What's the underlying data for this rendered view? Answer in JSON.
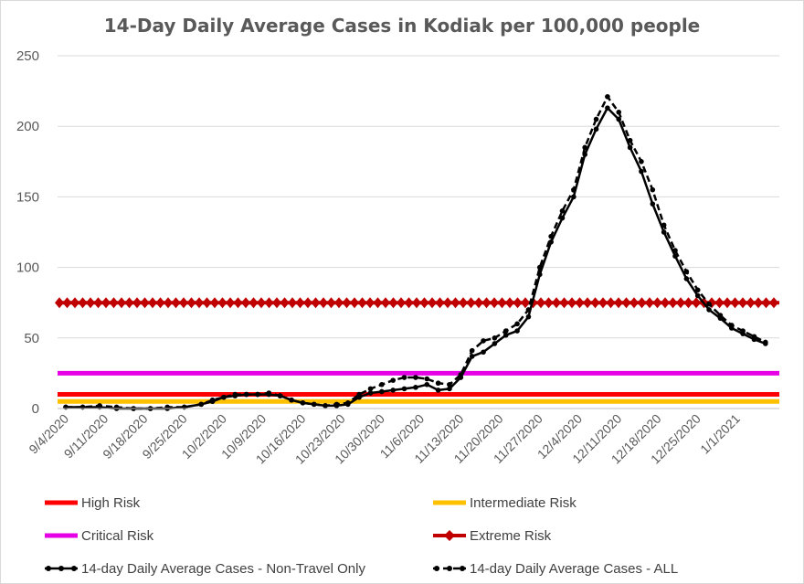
{
  "chart_data": {
    "type": "line",
    "title": "14-Day Daily Average Cases in Kodiak per 100,000 people",
    "xlabel": "",
    "ylabel": "",
    "ylim": [
      0,
      250
    ],
    "yticks": [
      0,
      50,
      100,
      150,
      200,
      250
    ],
    "grid": true,
    "x_tick_labels": [
      "9/4/2020",
      "9/11/2020",
      "9/18/2020",
      "9/25/2020",
      "10/2/2020",
      "10/9/2020",
      "10/16/2020",
      "10/23/2020",
      "10/30/2020",
      "11/6/2020",
      "11/13/2020",
      "11/20/2020",
      "11/27/2020",
      "12/4/2020",
      "12/11/2020",
      "12/18/2020",
      "12/25/2020",
      "1/1/2021"
    ],
    "x_day_offsets": [
      0,
      7,
      14,
      21,
      28,
      35,
      42,
      49,
      56,
      63,
      70,
      77,
      84,
      91,
      98,
      105,
      112,
      119
    ],
    "x_range_days": [
      0,
      125
    ],
    "thresholds": [
      {
        "name": "High Risk",
        "value": 10,
        "color": "#ff0000",
        "style": "line"
      },
      {
        "name": "Intermediate Risk",
        "value": 5,
        "color": "#ffc000",
        "style": "line"
      },
      {
        "name": "Critical Risk",
        "value": 25,
        "color": "#e600e6",
        "style": "line"
      },
      {
        "name": "Extreme Risk",
        "value": 75,
        "color": "#c00000",
        "style": "diamond"
      }
    ],
    "series": [
      {
        "name": "14-day Daily Average Cases - Non-Travel Only",
        "style": "solid",
        "color": "#000000",
        "x": [
          0,
          3,
          6,
          9,
          12,
          15,
          18,
          21,
          24,
          26,
          28,
          30,
          32,
          34,
          36,
          38,
          40,
          42,
          44,
          46,
          48,
          50,
          52,
          54,
          56,
          58,
          60,
          62,
          64,
          66,
          68,
          70,
          72,
          74,
          76,
          78,
          80,
          82,
          84,
          86,
          88,
          90,
          92,
          94,
          96,
          98,
          100,
          102,
          104,
          106,
          108,
          110,
          112,
          114,
          116,
          118,
          120,
          122,
          124
        ],
        "values": [
          1,
          1,
          1,
          0,
          0,
          0,
          0,
          1,
          3,
          5,
          8,
          9,
          10,
          10,
          10,
          9,
          6,
          4,
          3,
          2,
          2,
          3,
          8,
          11,
          12,
          13,
          14,
          15,
          17,
          13,
          14,
          22,
          37,
          40,
          46,
          52,
          55,
          65,
          95,
          118,
          135,
          150,
          180,
          198,
          213,
          205,
          185,
          168,
          145,
          125,
          108,
          92,
          80,
          70,
          64,
          57,
          53,
          49,
          46
        ]
      },
      {
        "name": "14-day Daily Average Cases - ALL",
        "style": "dashed",
        "color": "#000000",
        "x": [
          0,
          3,
          6,
          9,
          12,
          15,
          18,
          21,
          24,
          26,
          28,
          30,
          32,
          34,
          36,
          38,
          40,
          42,
          44,
          46,
          48,
          50,
          52,
          54,
          56,
          58,
          60,
          62,
          64,
          66,
          68,
          70,
          72,
          74,
          76,
          78,
          80,
          82,
          84,
          86,
          88,
          90,
          92,
          94,
          96,
          98,
          100,
          102,
          104,
          106,
          108,
          110,
          112,
          114,
          116,
          118,
          120,
          122,
          124
        ],
        "values": [
          1,
          1,
          2,
          1,
          0,
          0,
          1,
          1,
          3,
          6,
          8,
          10,
          10,
          10,
          11,
          9,
          6,
          4,
          3,
          2,
          3,
          4,
          10,
          14,
          17,
          20,
          22,
          22,
          21,
          18,
          17,
          24,
          41,
          48,
          50,
          55,
          60,
          70,
          100,
          122,
          140,
          155,
          185,
          205,
          221,
          210,
          190,
          175,
          155,
          130,
          112,
          97,
          84,
          74,
          66,
          59,
          55,
          51,
          47
        ]
      }
    ],
    "legend": [
      {
        "label": "High Risk",
        "color": "#ff0000",
        "marker": "line"
      },
      {
        "label": "Intermediate Risk",
        "color": "#ffc000",
        "marker": "line"
      },
      {
        "label": "Critical Risk",
        "color": "#e600e6",
        "marker": "line"
      },
      {
        "label": "Extreme Risk",
        "color": "#c00000",
        "marker": "diamond"
      },
      {
        "label": "14-day Daily Average Cases - Non-Travel Only",
        "color": "#000000",
        "marker": "dot-solid"
      },
      {
        "label": "14-day Daily Average Cases - ALL",
        "color": "#000000",
        "marker": "dot-dashed"
      }
    ]
  }
}
